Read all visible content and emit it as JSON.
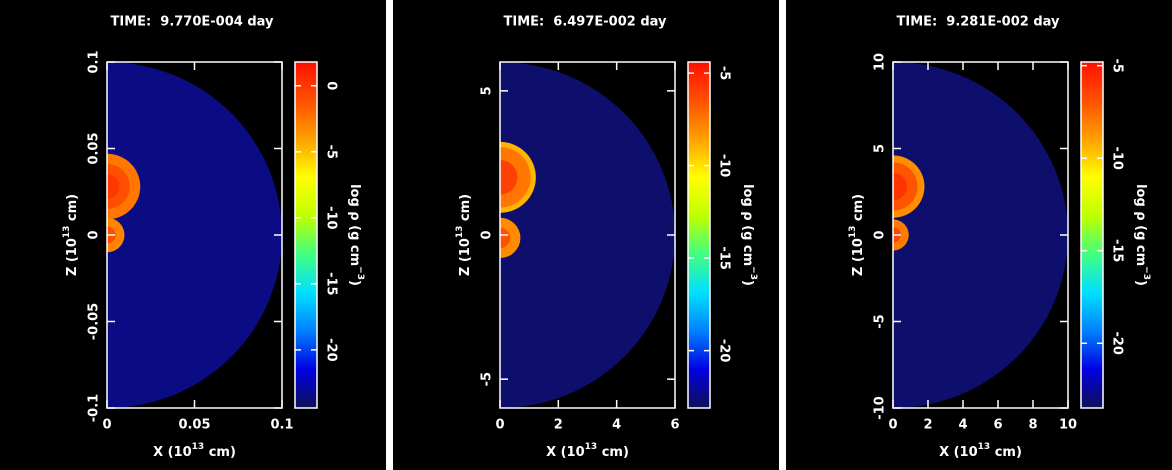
{
  "chart_data": [
    {
      "type": "density-map",
      "title": "TIME:  9.770E-004 day",
      "xlabel": [
        "X (10",
        "13",
        " cm)"
      ],
      "ylabel": [
        "Z (10",
        "13",
        " cm)"
      ],
      "xlim": [
        0,
        0.1
      ],
      "ylim": [
        -0.1,
        0.1
      ],
      "xticks": [
        0,
        0.05,
        0.1
      ],
      "yticks": [
        -0.1,
        -0.05,
        0,
        0.05,
        0.1
      ],
      "colorbar": {
        "label": [
          "log ρ (g cm",
          "−3",
          ")"
        ],
        "lim": [
          -24.4,
          1.8
        ],
        "ticks": [
          0,
          -5,
          -10,
          -15,
          -20
        ]
      },
      "colormap": [
        "#10105a",
        "#0000e0",
        "#0080ff",
        "#00e0ff",
        "#40ff80",
        "#c0ff00",
        "#ffff00",
        "#ffa000",
        "#ff5000",
        "#ff1000"
      ],
      "background": {
        "r": 0.1,
        "value": -23.5
      },
      "blobs": [
        {
          "z": 0.028,
          "shells": [
            {
              "r": 0.019,
              "value": -2.5
            },
            {
              "r": 0.013,
              "value": -1
            },
            {
              "r": 0.007,
              "value": 0
            }
          ]
        },
        {
          "z": 0,
          "shells": [
            {
              "r": 0.01,
              "value": -3
            },
            {
              "r": 0.005,
              "value": -1
            }
          ]
        }
      ]
    },
    {
      "type": "density-map",
      "title": "TIME:  6.497E-002 day",
      "xlabel": [
        "X (10",
        "13",
        " cm)"
      ],
      "ylabel": [
        "Z (10",
        "13",
        " cm)"
      ],
      "xlim": [
        0,
        6
      ],
      "ylim": [
        -6,
        6
      ],
      "xticks": [
        0,
        2,
        4,
        6
      ],
      "yticks": [
        -5,
        0,
        5
      ],
      "colorbar": {
        "label": [
          "log ρ (g cm",
          "−3",
          ")"
        ],
        "lim": [
          -23.1,
          -4.4
        ],
        "ticks": [
          -5,
          -10,
          -15,
          -20
        ]
      },
      "colormap": [
        "#10105a",
        "#0000e0",
        "#0080ff",
        "#00e0ff",
        "#40ff80",
        "#c0ff00",
        "#ffff00",
        "#ffa000",
        "#ff5000",
        "#ff1000"
      ],
      "background": {
        "r": 6,
        "value": -22.8
      },
      "blobs": [
        {
          "z": 2,
          "shells": [
            {
              "r": 1.23,
              "value": -9
            },
            {
              "r": 1.05,
              "value": -7.5
            },
            {
              "r": 0.6,
              "value": -6
            }
          ]
        },
        {
          "z": -0.1,
          "shells": [
            {
              "r": 0.7,
              "value": -8
            },
            {
              "r": 0.35,
              "value": -6.5
            }
          ]
        }
      ]
    },
    {
      "type": "density-map",
      "title": "TIME:  9.281E-002 day",
      "xlabel": [
        "X (10",
        "13",
        " cm)"
      ],
      "ylabel": [
        "Z (10",
        "13",
        " cm)"
      ],
      "xlim": [
        0,
        10
      ],
      "ylim": [
        -10,
        10
      ],
      "xticks": [
        0,
        2,
        4,
        6,
        8,
        10
      ],
      "yticks": [
        -10,
        -5,
        0,
        5,
        10
      ],
      "colorbar": {
        "label": [
          "log ρ (g cm",
          "−3",
          ")"
        ],
        "lim": [
          -23.5,
          -4.8
        ],
        "ticks": [
          -5,
          -10,
          -15,
          -20
        ]
      },
      "colormap": [
        "#10105a",
        "#0000e0",
        "#0080ff",
        "#00e0ff",
        "#40ff80",
        "#c0ff00",
        "#ffff00",
        "#ffa000",
        "#ff5000",
        "#ff1000"
      ],
      "background": {
        "r": 10,
        "value": -23.2
      },
      "blobs": [
        {
          "z": 2.8,
          "shells": [
            {
              "r": 1.8,
              "value": -8.5
            },
            {
              "r": 1.4,
              "value": -7
            },
            {
              "r": 0.8,
              "value": -6
            }
          ]
        },
        {
          "z": 0,
          "shells": [
            {
              "r": 0.9,
              "value": -8
            },
            {
              "r": 0.45,
              "value": -6.5
            }
          ]
        }
      ]
    }
  ]
}
